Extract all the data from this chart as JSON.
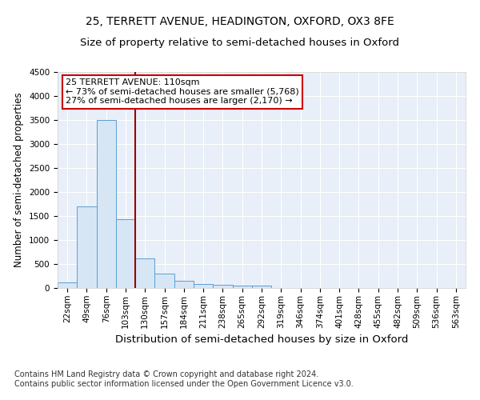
{
  "title": "25, TERRETT AVENUE, HEADINGTON, OXFORD, OX3 8FE",
  "subtitle": "Size of property relative to semi-detached houses in Oxford",
  "xlabel": "Distribution of semi-detached houses by size in Oxford",
  "ylabel": "Number of semi-detached properties",
  "bin_labels": [
    "22sqm",
    "49sqm",
    "76sqm",
    "103sqm",
    "130sqm",
    "157sqm",
    "184sqm",
    "211sqm",
    "238sqm",
    "265sqm",
    "292sqm",
    "319sqm",
    "346sqm",
    "374sqm",
    "401sqm",
    "428sqm",
    "455sqm",
    "482sqm",
    "509sqm",
    "536sqm",
    "563sqm"
  ],
  "bin_values": [
    125,
    1700,
    3500,
    1430,
    610,
    300,
    155,
    90,
    65,
    50,
    50,
    0,
    0,
    0,
    0,
    0,
    0,
    0,
    0,
    0,
    0
  ],
  "bar_color": "#d6e6f5",
  "bar_edge_color": "#5a9fd4",
  "subject_line_color": "#990000",
  "annotation_text": "25 TERRETT AVENUE: 110sqm\n← 73% of semi-detached houses are smaller (5,768)\n27% of semi-detached houses are larger (2,170) →",
  "annotation_box_color": "#ffffff",
  "annotation_box_edge_color": "#cc0000",
  "ylim": [
    0,
    4500
  ],
  "footer": "Contains HM Land Registry data © Crown copyright and database right 2024.\nContains public sector information licensed under the Open Government Licence v3.0.",
  "title_fontsize": 10,
  "subtitle_fontsize": 9.5,
  "ylabel_fontsize": 8.5,
  "xlabel_fontsize": 9.5,
  "tick_fontsize": 7.5,
  "annotation_fontsize": 8,
  "footer_fontsize": 7
}
